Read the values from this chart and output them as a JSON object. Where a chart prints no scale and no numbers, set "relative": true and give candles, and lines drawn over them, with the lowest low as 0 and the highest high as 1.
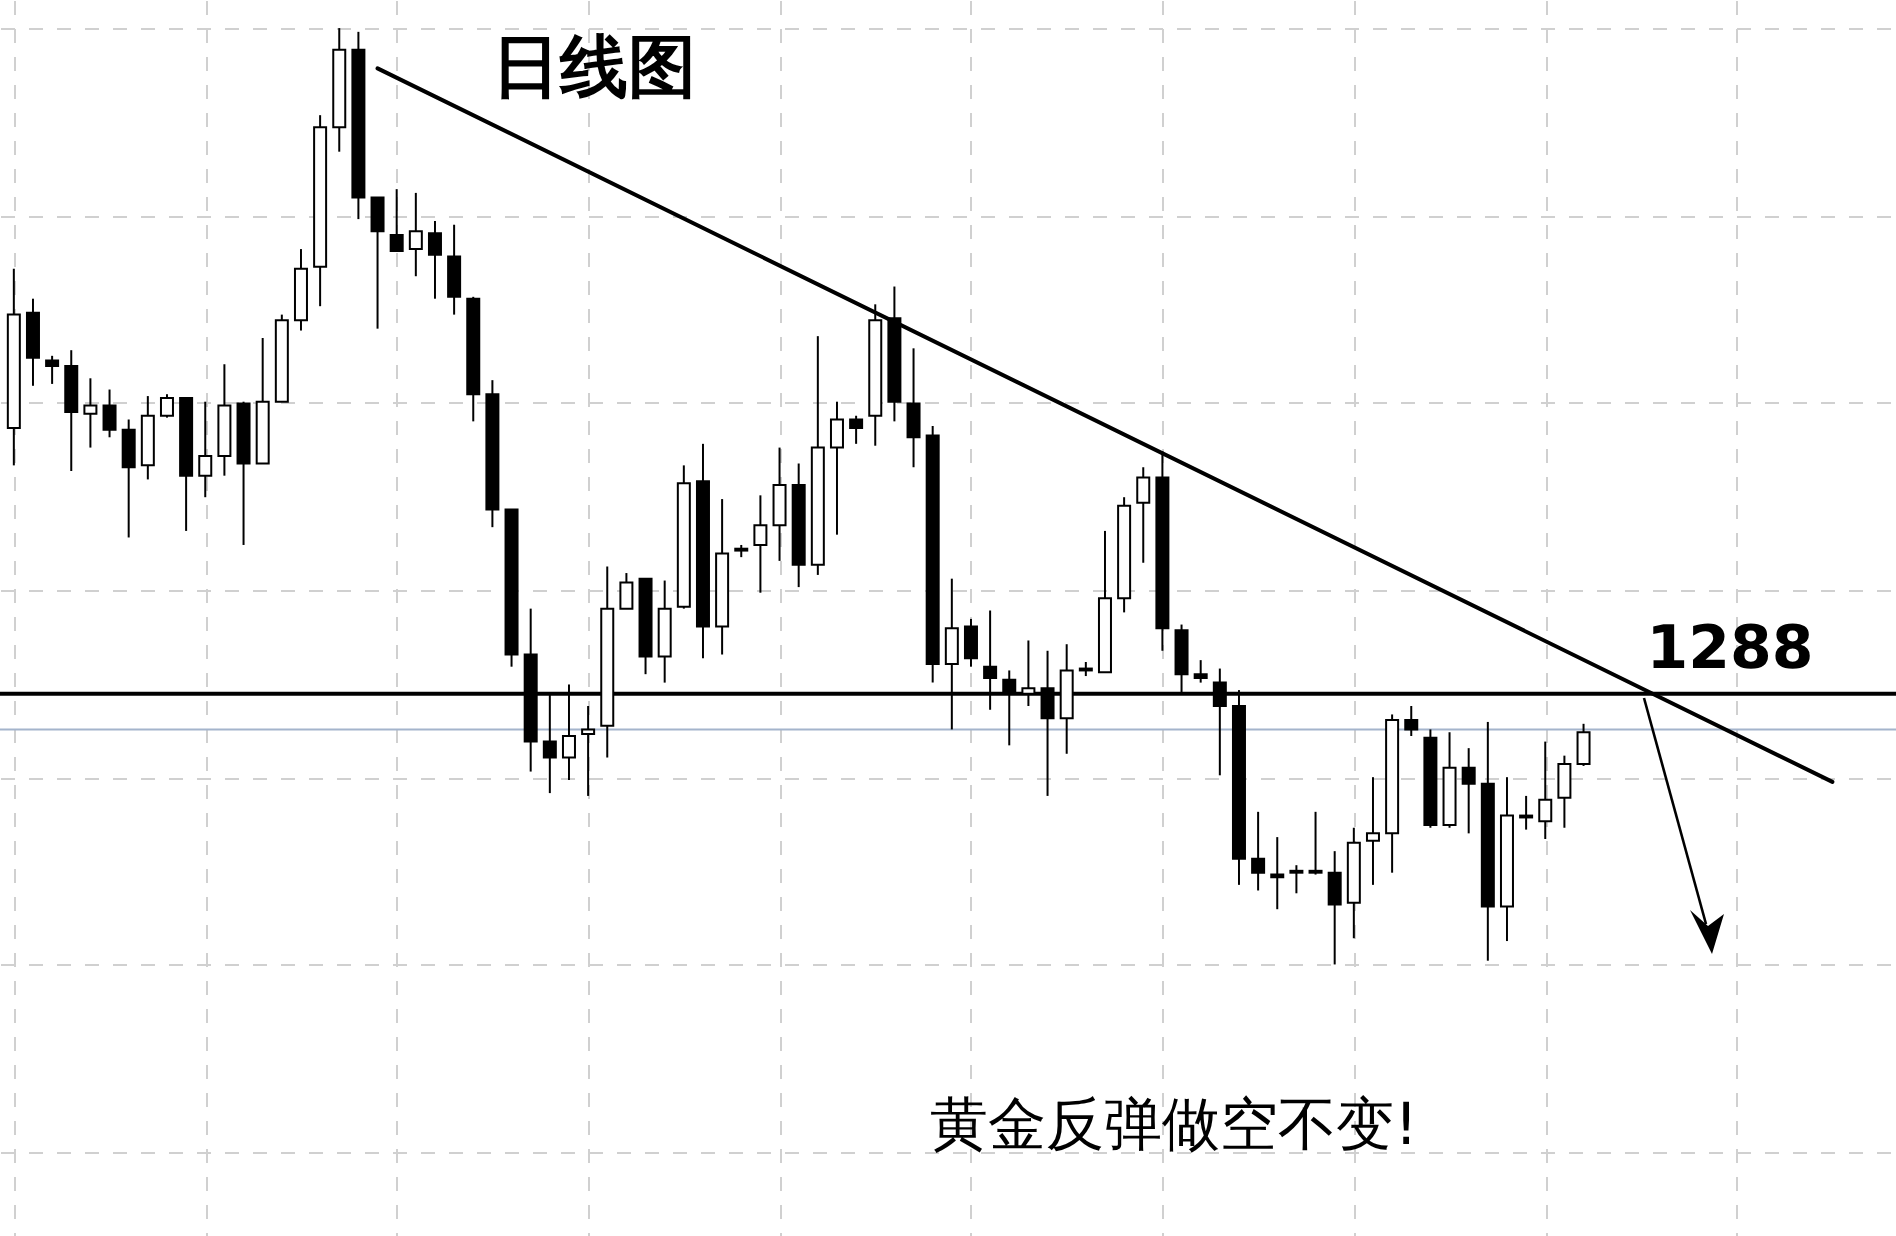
{
  "chart_data": {
    "type": "candlestick",
    "title": "日线图",
    "relative": true,
    "grid": true,
    "categories": [
      null,
      null,
      null,
      null,
      null,
      null,
      null,
      null,
      null,
      null,
      null,
      null,
      null,
      null,
      null,
      null,
      null,
      null,
      null,
      null,
      null,
      null,
      null,
      null,
      null,
      null,
      null,
      null,
      null,
      null,
      null,
      null,
      null,
      null,
      null,
      null,
      null,
      null,
      null,
      null,
      null,
      null,
      null,
      null,
      null,
      null,
      null,
      null,
      null,
      null,
      null,
      null,
      null,
      null,
      null,
      null,
      null,
      null,
      null,
      null,
      null,
      null,
      null,
      null,
      null,
      null,
      null,
      null,
      null,
      null,
      null,
      null,
      null,
      null,
      null,
      null,
      null,
      null,
      null,
      null,
      null,
      null,
      null,
      null,
      null,
      null,
      null,
      null,
      null,
      null,
      null,
      null,
      null,
      null,
      null,
      null
    ],
    "ohlc": [
      [
        0.573,
        0.743,
        0.533,
        0.694
      ],
      [
        0.696,
        0.711,
        0.618,
        0.648
      ],
      [
        0.645,
        0.65,
        0.62,
        0.639
      ],
      [
        0.639,
        0.656,
        0.527,
        0.59
      ],
      [
        0.588,
        0.626,
        0.552,
        0.597
      ],
      [
        0.597,
        0.614,
        0.563,
        0.571
      ],
      [
        0.571,
        0.582,
        0.456,
        0.531
      ],
      [
        0.533,
        0.607,
        0.518,
        0.586
      ],
      [
        0.586,
        0.609,
        0.584,
        0.605
      ],
      [
        0.605,
        0.605,
        0.463,
        0.522
      ],
      [
        0.522,
        0.601,
        0.499,
        0.543
      ],
      [
        0.543,
        0.641,
        0.522,
        0.597
      ],
      [
        0.599,
        0.601,
        0.448,
        0.535
      ],
      [
        0.535,
        0.669,
        0.535,
        0.601
      ],
      [
        0.601,
        0.694,
        0.601,
        0.688
      ],
      [
        0.688,
        0.764,
        0.677,
        0.743
      ],
      [
        0.745,
        0.907,
        0.703,
        0.894
      ],
      [
        0.894,
        1,
        0.868,
        0.977
      ],
      [
        0.977,
        0.996,
        0.796,
        0.819
      ],
      [
        0.819,
        0.819,
        0.679,
        0.783
      ],
      [
        0.779,
        0.828,
        0.762,
        0.762
      ],
      [
        0.764,
        0.824,
        0.735,
        0.783
      ],
      [
        0.781,
        0.794,
        0.711,
        0.758
      ],
      [
        0.756,
        0.79,
        0.694,
        0.713
      ],
      [
        0.711,
        0.713,
        0.58,
        0.609
      ],
      [
        0.609,
        0.624,
        0.467,
        0.486
      ],
      [
        0.486,
        0.486,
        0.318,
        0.331
      ],
      [
        0.331,
        0.38,
        0.206,
        0.238
      ],
      [
        0.238,
        0.289,
        0.183,
        0.221
      ],
      [
        0.221,
        0.299,
        0.197,
        0.244
      ],
      [
        0.246,
        0.276,
        0.18,
        0.251
      ],
      [
        0.255,
        0.425,
        0.221,
        0.38
      ],
      [
        0.38,
        0.418,
        0.38,
        0.408
      ],
      [
        0.412,
        0.412,
        0.31,
        0.329
      ],
      [
        0.329,
        0.41,
        0.301,
        0.38
      ],
      [
        0.382,
        0.533,
        0.38,
        0.514
      ],
      [
        0.516,
        0.556,
        0.327,
        0.361
      ],
      [
        0.361,
        0.497,
        0.331,
        0.439
      ],
      [
        0.442,
        0.448,
        0.435,
        0.444
      ],
      [
        0.448,
        0.501,
        0.397,
        0.469
      ],
      [
        0.469,
        0.552,
        0.431,
        0.512
      ],
      [
        0.512,
        0.535,
        0.403,
        0.427
      ],
      [
        0.427,
        0.671,
        0.416,
        0.552
      ],
      [
        0.552,
        0.601,
        0.459,
        0.582
      ],
      [
        0.582,
        0.586,
        0.556,
        0.573
      ],
      [
        0.586,
        0.705,
        0.554,
        0.688
      ],
      [
        0.69,
        0.724,
        0.58,
        0.601
      ],
      [
        0.599,
        0.658,
        0.531,
        0.563
      ],
      [
        0.565,
        0.575,
        0.301,
        0.321
      ],
      [
        0.321,
        0.412,
        0.251,
        0.359
      ],
      [
        0.361,
        0.369,
        0.318,
        0.327
      ],
      [
        0.318,
        0.378,
        0.272,
        0.306
      ],
      [
        0.304,
        0.314,
        0.234,
        0.289
      ],
      [
        0.289,
        0.346,
        0.276,
        0.295
      ],
      [
        0.295,
        0.335,
        0.18,
        0.263
      ],
      [
        0.263,
        0.342,
        0.225,
        0.314
      ],
      [
        0.314,
        0.323,
        0.308,
        0.316
      ],
      [
        0.312,
        0.463,
        0.312,
        0.391
      ],
      [
        0.391,
        0.499,
        0.376,
        0.49
      ],
      [
        0.493,
        0.531,
        0.429,
        0.52
      ],
      [
        0.52,
        0.548,
        0.335,
        0.359
      ],
      [
        0.357,
        0.363,
        0.291,
        0.31
      ],
      [
        0.31,
        0.325,
        0.301,
        0.306
      ],
      [
        0.301,
        0.316,
        0.202,
        0.276
      ],
      [
        0.276,
        0.293,
        0.085,
        0.113
      ],
      [
        0.113,
        0.163,
        0.079,
        0.098
      ],
      [
        0.096,
        0.136,
        0.059,
        0.093
      ],
      [
        0.098,
        0.106,
        0.076,
        0.1
      ],
      [
        0.098,
        0.163,
        0.096,
        0.1
      ],
      [
        0.098,
        0.121,
        0,
        0.064
      ],
      [
        0.066,
        0.146,
        0.028,
        0.13
      ],
      [
        0.132,
        0.2,
        0.085,
        0.14
      ],
      [
        0.14,
        0.267,
        0.098,
        0.261
      ],
      [
        0.261,
        0.276,
        0.244,
        0.251
      ],
      [
        0.242,
        0.251,
        0.146,
        0.149
      ],
      [
        0.149,
        0.248,
        0.146,
        0.21
      ],
      [
        0.21,
        0.231,
        0.14,
        0.193
      ],
      [
        0.193,
        0.259,
        0.004,
        0.062
      ],
      [
        0.062,
        0.2,
        0.025,
        0.159
      ],
      [
        0.157,
        0.18,
        0.144,
        0.159
      ],
      [
        0.153,
        0.238,
        0.134,
        0.176
      ],
      [
        0.178,
        0.223,
        0.146,
        0.214
      ],
      [
        0.214,
        0.257,
        0.212,
        0.248
      ],
      null,
      null,
      null,
      null,
      null,
      null,
      null,
      null,
      null,
      null,
      null,
      null,
      null
    ],
    "series": [
      {
        "type": "line",
        "values": [
          null,
          null,
          null,
          null,
          null,
          null,
          null,
          null,
          null,
          null,
          null,
          null,
          null,
          null,
          null,
          null,
          null,
          null,
          null,
          0.957,
          null,
          null,
          null,
          null,
          null,
          null,
          null,
          null,
          null,
          null,
          null,
          null,
          null,
          null,
          null,
          null,
          null,
          null,
          null,
          null,
          null,
          null,
          null,
          null,
          null,
          null,
          null,
          null,
          null,
          null,
          null,
          null,
          null,
          null,
          null,
          null,
          null,
          null,
          null,
          null,
          null,
          null,
          null,
          null,
          null,
          null,
          null,
          null,
          null,
          null,
          null,
          null,
          null,
          null,
          null,
          null,
          null,
          null,
          null,
          null,
          null,
          null,
          null,
          null,
          null,
          null,
          null,
          null,
          null,
          null,
          null,
          null,
          null,
          null,
          null,
          0.195
        ],
        "color": "#000000"
      }
    ],
    "ref_lines": [
      {
        "axis": "y",
        "value": 0.289,
        "color": "#000000"
      },
      {
        "axis": "y",
        "value": 0.251,
        "color": "#a4b4cc"
      }
    ],
    "annotations": [
      "1288",
      "黄金反弹做空不变!"
    ]
  }
}
